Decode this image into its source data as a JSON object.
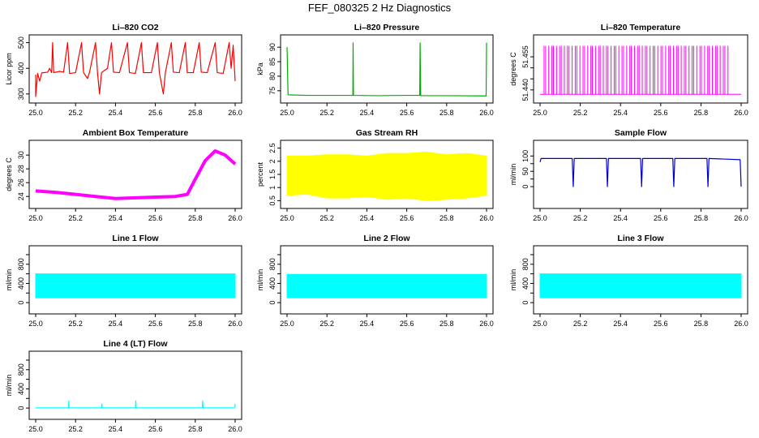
{
  "title": "FEF_080325  2 Hz Diagnostics",
  "chart_data": [
    {
      "id": "co2",
      "type": "line",
      "title": "Li–820 CO2",
      "xlabel": "",
      "ylabel": "Licor ppm",
      "color": "#ff0000",
      "xlim": [
        25.0,
        26.0
      ],
      "ylim": [
        290,
        505
      ],
      "xticks": [
        25.0,
        25.2,
        25.4,
        25.6,
        25.8,
        26.0
      ],
      "yticks": [
        300,
        400,
        500
      ],
      "ytick_rotated": true,
      "series": [
        {
          "values": [
            [
              25.0,
              375
            ],
            [
              25.0,
              290
            ],
            [
              25.01,
              380
            ],
            [
              25.02,
              350
            ],
            [
              25.03,
              382
            ],
            [
              25.06,
              385
            ],
            [
              25.07,
              400
            ],
            [
              25.08,
              383
            ],
            [
              25.085,
              500
            ],
            [
              25.09,
              383
            ],
            [
              25.12,
              388
            ],
            [
              25.14,
              385
            ],
            [
              25.16,
              500
            ],
            [
              25.17,
              380
            ],
            [
              25.2,
              383
            ],
            [
              25.23,
              500
            ],
            [
              25.24,
              383
            ],
            [
              25.26,
              360
            ],
            [
              25.27,
              385
            ],
            [
              25.3,
              500
            ],
            [
              25.31,
              383
            ],
            [
              25.32,
              300
            ],
            [
              25.33,
              383
            ],
            [
              25.36,
              400
            ],
            [
              25.38,
              500
            ],
            [
              25.39,
              385
            ],
            [
              25.42,
              383
            ],
            [
              25.46,
              500
            ],
            [
              25.47,
              383
            ],
            [
              25.5,
              380
            ],
            [
              25.53,
              500
            ],
            [
              25.54,
              383
            ],
            [
              25.58,
              383
            ],
            [
              25.61,
              500
            ],
            [
              25.62,
              383
            ],
            [
              25.64,
              300
            ],
            [
              25.65,
              383
            ],
            [
              25.68,
              500
            ],
            [
              25.69,
              385
            ],
            [
              25.72,
              383
            ],
            [
              25.75,
              500
            ],
            [
              25.76,
              383
            ],
            [
              25.79,
              383
            ],
            [
              25.82,
              500
            ],
            [
              25.83,
              385
            ],
            [
              25.86,
              383
            ],
            [
              25.9,
              500
            ],
            [
              25.91,
              383
            ],
            [
              25.94,
              380
            ],
            [
              25.97,
              500
            ],
            [
              25.98,
              400
            ],
            [
              25.99,
              490
            ],
            [
              26.0,
              350
            ]
          ]
        }
      ]
    },
    {
      "id": "pressure",
      "type": "line",
      "title": "Li–820 Pressure",
      "xlabel": "",
      "ylabel": "kPa",
      "color": "#00b000",
      "xlim": [
        25.0,
        26.0
      ],
      "ylim": [
        73,
        92
      ],
      "xticks": [
        25.0,
        25.2,
        25.4,
        25.6,
        25.8,
        26.0
      ],
      "yticks": [
        75,
        80,
        85,
        90
      ],
      "ytick_rotated": true,
      "series": [
        {
          "values": [
            [
              25.0,
              90
            ],
            [
              25.005,
              73.6
            ],
            [
              25.1,
              73.4
            ],
            [
              25.2,
              73.4
            ],
            [
              25.33,
              73.4
            ],
            [
              25.331,
              91.5
            ],
            [
              25.333,
              73.4
            ],
            [
              25.45,
              73.3
            ],
            [
              25.6,
              73.4
            ],
            [
              25.665,
              73.4
            ],
            [
              25.667,
              91.5
            ],
            [
              25.67,
              73.3
            ],
            [
              25.8,
              73.3
            ],
            [
              25.998,
              73.2
            ],
            [
              26.0,
              91.5
            ]
          ]
        }
      ]
    },
    {
      "id": "temperature",
      "type": "line",
      "title": "Li–820 Temperature",
      "xlabel": "",
      "ylabel": "degrees C",
      "color": "#ff00ff",
      "xlim": [
        25.0,
        26.0
      ],
      "ylim": [
        51.437,
        51.462
      ],
      "xticks": [
        25.0,
        25.2,
        25.4,
        25.6,
        25.8,
        26.0
      ],
      "yticks": [
        51.44,
        51.445,
        51.45,
        51.455
      ],
      "ytick_labels": [
        "51.440",
        "",
        "",
        "51.455"
      ],
      "ytick_rotated": true,
      "series": [
        {
          "values": [
            [
              25.0,
              51.438
            ],
            [
              25.02,
              51.46
            ],
            [
              25.04,
              51.438
            ],
            [
              25.06,
              51.46
            ],
            [
              25.08,
              51.438
            ],
            [
              25.1,
              51.46
            ],
            [
              25.12,
              51.438
            ],
            [
              25.14,
              51.46
            ],
            [
              25.16,
              51.438
            ],
            [
              25.2,
              51.46
            ],
            [
              25.22,
              51.438
            ],
            [
              25.26,
              51.46
            ],
            [
              25.3,
              51.438
            ],
            [
              25.34,
              51.46
            ],
            [
              25.38,
              51.438
            ],
            [
              25.42,
              51.46
            ],
            [
              25.44,
              51.438
            ],
            [
              25.48,
              51.46
            ],
            [
              25.5,
              51.438
            ],
            [
              25.54,
              51.46
            ],
            [
              25.56,
              51.438
            ],
            [
              25.6,
              51.46
            ],
            [
              25.62,
              51.438
            ],
            [
              25.66,
              51.46
            ],
            [
              25.68,
              51.438
            ],
            [
              25.72,
              51.46
            ],
            [
              25.74,
              51.438
            ],
            [
              25.78,
              51.46
            ],
            [
              25.8,
              51.438
            ],
            [
              25.84,
              51.46
            ],
            [
              25.86,
              51.438
            ],
            [
              25.9,
              51.46
            ],
            [
              25.92,
              51.438
            ],
            [
              25.96,
              51.438
            ],
            [
              26.0,
              51.438
            ]
          ]
        }
      ]
    },
    {
      "id": "ambient",
      "type": "line",
      "title": "Ambient Box Temperature",
      "xlabel": "",
      "ylabel": "degrees C",
      "color": "#ff00ff",
      "xlim": [
        25.0,
        26.0
      ],
      "ylim": [
        23.2,
        31.2
      ],
      "xticks": [
        25.0,
        25.2,
        25.4,
        25.6,
        25.8,
        26.0
      ],
      "yticks": [
        24,
        26,
        28,
        30
      ],
      "ytick_rotated": true,
      "series": [
        {
          "values": [
            [
              25.0,
              24.8
            ],
            [
              25.1,
              24.6
            ],
            [
              25.2,
              24.3
            ],
            [
              25.3,
              24.0
            ],
            [
              25.4,
              23.7
            ],
            [
              25.5,
              23.8
            ],
            [
              25.6,
              23.9
            ],
            [
              25.7,
              24.0
            ],
            [
              25.76,
              24.3
            ],
            [
              25.8,
              26.5
            ],
            [
              25.85,
              29.2
            ],
            [
              25.9,
              30.6
            ],
            [
              25.95,
              30.0
            ],
            [
              26.0,
              28.7
            ]
          ]
        }
      ]
    },
    {
      "id": "rh",
      "type": "line",
      "title": "Gas Stream RH",
      "xlabel": "",
      "ylabel": "percent",
      "color": "#ffff00",
      "xlim": [
        25.0,
        26.0
      ],
      "ylim": [
        0.45,
        2.55
      ],
      "xticks": [
        25.0,
        25.2,
        25.4,
        25.6,
        25.8,
        26.0
      ],
      "yticks": [
        0.5,
        1.0,
        1.5,
        2.0,
        2.5
      ],
      "ytick_labels": [
        "0.5",
        "1",
        "1.5",
        "2",
        "2.5"
      ],
      "ytick_rotated": true,
      "series": [
        {
          "values": [
            [
              25.0,
              2.2
            ],
            [
              25.1,
              2.2
            ],
            [
              25.2,
              2.25
            ],
            [
              25.3,
              2.25
            ],
            [
              25.4,
              2.2
            ],
            [
              25.5,
              2.3
            ],
            [
              25.6,
              2.3
            ],
            [
              25.7,
              2.35
            ],
            [
              25.8,
              2.25
            ],
            [
              25.9,
              2.3
            ],
            [
              26.0,
              2.2
            ]
          ]
        },
        {
          "values": [
            [
              25.0,
              0.7
            ],
            [
              25.1,
              0.75
            ],
            [
              25.2,
              0.6
            ],
            [
              25.3,
              0.6
            ],
            [
              25.4,
              0.65
            ],
            [
              25.5,
              0.55
            ],
            [
              25.6,
              0.6
            ],
            [
              25.7,
              0.5
            ],
            [
              25.8,
              0.55
            ],
            [
              25.9,
              0.6
            ],
            [
              26.0,
              0.7
            ]
          ]
        }
      ]
    },
    {
      "id": "sample_flow",
      "type": "line",
      "title": "Sample Flow",
      "xlabel": "",
      "ylabel": "ml/min",
      "color": "#0000cc",
      "xlim": [
        25.0,
        26.0
      ],
      "ylim": [
        -50,
        130
      ],
      "xticks": [
        25.0,
        25.2,
        25.4,
        25.6,
        25.8,
        26.0
      ],
      "yticks": [
        0,
        25,
        50,
        75,
        100
      ],
      "ytick_labels": [
        "0",
        "",
        "50",
        "",
        "100"
      ],
      "ytick_rotated": true,
      "series": [
        {
          "values": [
            [
              25.0,
              80
            ],
            [
              25.005,
              92
            ],
            [
              25.16,
              92
            ],
            [
              25.165,
              0
            ],
            [
              25.17,
              92
            ],
            [
              25.33,
              92
            ],
            [
              25.335,
              0
            ],
            [
              25.34,
              92
            ],
            [
              25.5,
              92
            ],
            [
              25.505,
              0
            ],
            [
              25.51,
              92
            ],
            [
              25.66,
              92
            ],
            [
              25.665,
              0
            ],
            [
              25.67,
              92
            ],
            [
              25.83,
              92
            ],
            [
              25.835,
              0
            ],
            [
              25.84,
              92
            ],
            [
              25.995,
              88
            ],
            [
              26.0,
              0
            ]
          ]
        }
      ]
    },
    {
      "id": "line1",
      "type": "line",
      "title": "Line 1 Flow",
      "xlabel": "",
      "ylabel": "ml/min",
      "color": "#00ffff",
      "xlim": [
        25.0,
        26.0
      ],
      "ylim": [
        -100,
        1050
      ],
      "xticks": [
        25.0,
        25.2,
        25.4,
        25.6,
        25.8,
        26.0
      ],
      "yticks": [
        0,
        200,
        400,
        600,
        800,
        1000
      ],
      "ytick_labels": [
        "0",
        "",
        "400",
        "",
        "800",
        ""
      ],
      "ytick_rotated": true,
      "series": [
        {
          "values": [
            [
              25.0,
              100
            ],
            [
              26.0,
              600
            ]
          ]
        }
      ]
    },
    {
      "id": "line2",
      "type": "line",
      "title": "Line 2 Flow",
      "xlabel": "",
      "ylabel": "ml/min",
      "color": "#00ffff",
      "xlim": [
        25.0,
        26.0
      ],
      "ylim": [
        -100,
        1050
      ],
      "xticks": [
        25.0,
        25.2,
        25.4,
        25.6,
        25.8,
        26.0
      ],
      "yticks": [
        0,
        200,
        400,
        600,
        800,
        1000
      ],
      "ytick_labels": [
        "0",
        "",
        "400",
        "",
        "800",
        ""
      ],
      "ytick_rotated": true,
      "series": [
        {
          "values": [
            [
              25.0,
              100
            ],
            [
              26.0,
              590
            ]
          ]
        }
      ]
    },
    {
      "id": "line3",
      "type": "line",
      "title": "Line 3 Flow",
      "xlabel": "",
      "ylabel": "ml/min",
      "color": "#00ffff",
      "xlim": [
        25.0,
        26.0
      ],
      "ylim": [
        -100,
        1050
      ],
      "xticks": [
        25.0,
        25.2,
        25.4,
        25.6,
        25.8,
        26.0
      ],
      "yticks": [
        0,
        200,
        400,
        600,
        800,
        1000
      ],
      "ytick_labels": [
        "0",
        "",
        "400",
        "",
        "800",
        ""
      ],
      "ytick_rotated": true,
      "series": [
        {
          "values": [
            [
              25.0,
              100
            ],
            [
              26.0,
              600
            ]
          ]
        }
      ]
    },
    {
      "id": "line4",
      "type": "line",
      "title": "Line 4 (LT) Flow",
      "xlabel": "",
      "ylabel": "ml/min",
      "color": "#00ffff",
      "xlim": [
        25.0,
        26.0
      ],
      "ylim": [
        -100,
        1050
      ],
      "xticks": [
        25.0,
        25.2,
        25.4,
        25.6,
        25.8,
        26.0
      ],
      "yticks": [
        0,
        200,
        400,
        600,
        800,
        1000
      ],
      "ytick_labels": [
        "0",
        "",
        "400",
        "",
        "800",
        ""
      ],
      "ytick_rotated": true,
      "series": [
        {
          "values": [
            [
              25.0,
              5
            ],
            [
              25.165,
              5
            ],
            [
              25.166,
              150
            ],
            [
              25.168,
              5
            ],
            [
              25.33,
              5
            ],
            [
              25.332,
              90
            ],
            [
              25.334,
              5
            ],
            [
              25.5,
              5
            ],
            [
              25.502,
              150
            ],
            [
              25.504,
              5
            ],
            [
              25.835,
              5
            ],
            [
              25.837,
              150
            ],
            [
              25.839,
              5
            ],
            [
              25.998,
              5
            ],
            [
              26.0,
              90
            ]
          ]
        }
      ]
    }
  ]
}
